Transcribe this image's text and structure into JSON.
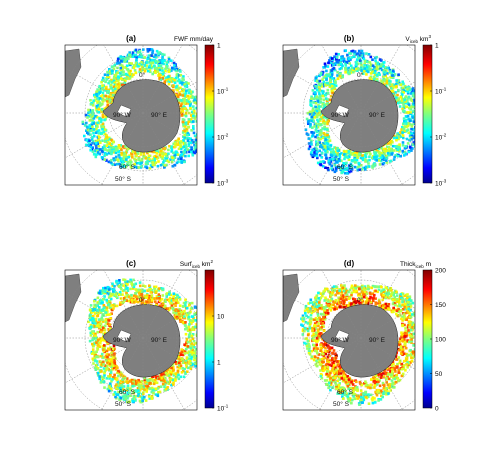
{
  "chart_data": [
    {
      "type": "heatmap",
      "panel": "(a)",
      "colorbar": {
        "label": "FWF mm/day",
        "label_main": "FWF mm/day",
        "label_sub": "",
        "label_tail": "",
        "scale": "log",
        "range": [
          0.001,
          1
        ],
        "ticks": [
          {
            "text": "1",
            "value": 1
          },
          {
            "text": "10",
            "sup": "-1",
            "value": 0.1
          },
          {
            "text": "10",
            "sup": "-2",
            "value": 0.01
          },
          {
            "text": "10",
            "sup": "-3",
            "value": 0.001
          }
        ]
      },
      "map_labels": [
        "0°",
        "90° W",
        "90° E",
        "60° S",
        "50° S"
      ]
    },
    {
      "type": "heatmap",
      "panel": "(b)",
      "colorbar": {
        "label": "V_iceb km^3",
        "label_main": "V",
        "label_sub": "iceb",
        "label_tail": " km",
        "label_sup": "3",
        "scale": "log",
        "range": [
          0.001,
          1
        ],
        "ticks": [
          {
            "text": "1",
            "value": 1
          },
          {
            "text": "10",
            "sup": "-1",
            "value": 0.1
          },
          {
            "text": "10",
            "sup": "-2",
            "value": 0.01
          },
          {
            "text": "10",
            "sup": "-3",
            "value": 0.001
          }
        ]
      },
      "map_labels": [
        "0°",
        "90° W",
        "90° E",
        "60° S",
        "50° S"
      ]
    },
    {
      "type": "heatmap",
      "panel": "(c)",
      "colorbar": {
        "label": "Surf_iceb km^2",
        "label_main": "Surf",
        "label_sub": "iceb",
        "label_tail": " km",
        "label_sup": "2",
        "scale": "log",
        "range": [
          0.1,
          100
        ],
        "ticks": [
          {
            "text": "10",
            "value": 10
          },
          {
            "text": "1",
            "value": 1
          },
          {
            "text": "10",
            "sup": "-1",
            "value": 0.1
          }
        ]
      },
      "map_labels": [
        "0°",
        "90° W",
        "90° E",
        "60° S",
        "50° S"
      ]
    },
    {
      "type": "heatmap",
      "panel": "(d)",
      "colorbar": {
        "label": "Thick_iceb m",
        "label_main": "Thick",
        "label_sub": "iceb",
        "label_tail": " m",
        "scale": "linear",
        "range": [
          0,
          200
        ],
        "ticks": [
          {
            "text": "200",
            "value": 200
          },
          {
            "text": "150",
            "value": 150
          },
          {
            "text": "100",
            "value": 100
          },
          {
            "text": "50",
            "value": 50
          },
          {
            "text": "0",
            "value": 0
          }
        ]
      },
      "map_labels": [
        "0°",
        "90° W",
        "90° E",
        "60° S",
        "50° S"
      ]
    }
  ],
  "colors": {
    "land": "#7f7f7f",
    "ocean": "#ffffff",
    "colormap": "jet"
  }
}
